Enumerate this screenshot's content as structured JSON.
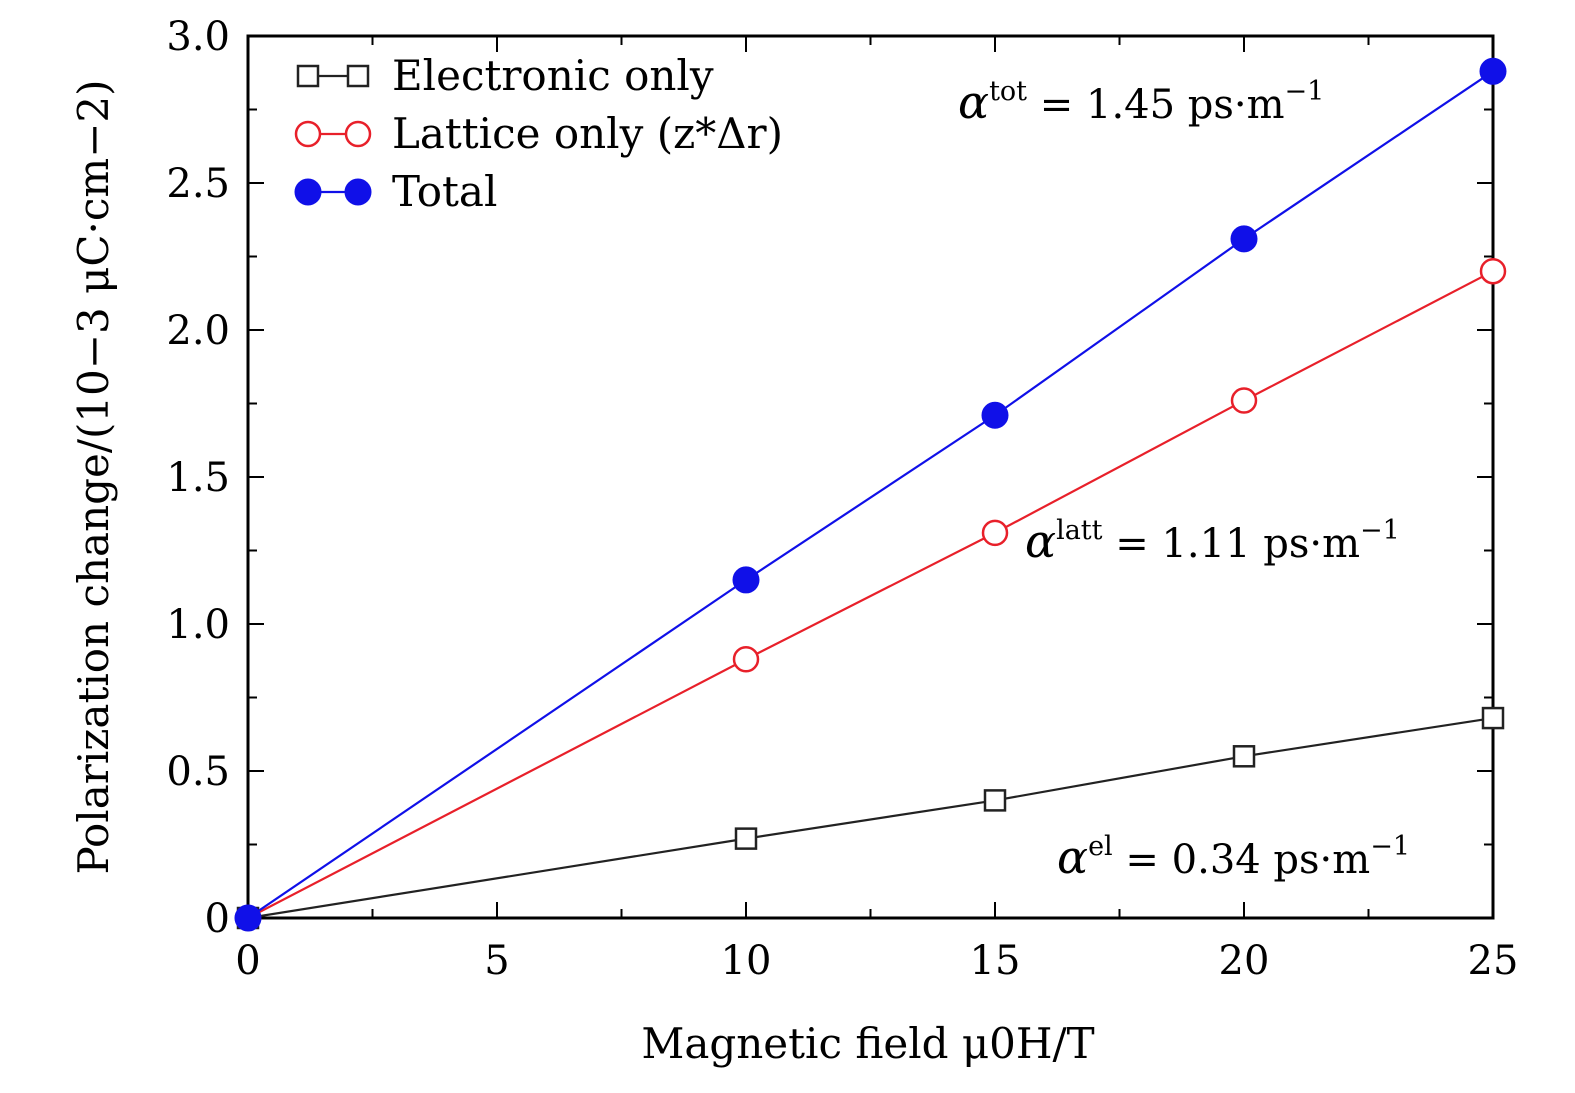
{
  "chart_data": {
    "type": "line",
    "xlabel": "Magnetic field μ0H/T",
    "ylabel": "Polarization change/(10−3 μC·cm−2)",
    "xlim": [
      0,
      25
    ],
    "ylim": [
      0,
      3.0
    ],
    "x_ticks": [
      "0",
      "5",
      "10",
      "15",
      "20",
      "25"
    ],
    "y_ticks": [
      "0",
      "0.5",
      "1.0",
      "1.5",
      "2.0",
      "2.5",
      "3.0"
    ],
    "grid": false,
    "legend_position": "top-left",
    "series": [
      {
        "name": "Electronic only",
        "color": "#222222",
        "marker": "open-square",
        "x": [
          0,
          10,
          15,
          20,
          25
        ],
        "y": [
          0,
          0.27,
          0.4,
          0.55,
          0.68
        ]
      },
      {
        "name": "Lattice only (z*Δr)",
        "color": "#e8202a",
        "marker": "open-circle",
        "x": [
          0,
          10,
          15,
          20,
          25
        ],
        "y": [
          0,
          0.88,
          1.31,
          1.76,
          2.2
        ]
      },
      {
        "name": "Total",
        "color": "#1010e8",
        "marker": "filled-circle",
        "x": [
          0,
          10,
          15,
          20,
          25
        ],
        "y": [
          0,
          1.15,
          1.71,
          2.31,
          2.88
        ]
      }
    ],
    "annotations": [
      {
        "symbol": "α",
        "superscript": "tot",
        "text": " = 1.45 ps·m",
        "exp": "−1"
      },
      {
        "symbol": "α",
        "superscript": "latt",
        "text": " = 1.11 ps·m",
        "exp": "−1"
      },
      {
        "symbol": "α",
        "superscript": "el",
        "text": " = 0.34 ps·m",
        "exp": "−1"
      }
    ]
  }
}
